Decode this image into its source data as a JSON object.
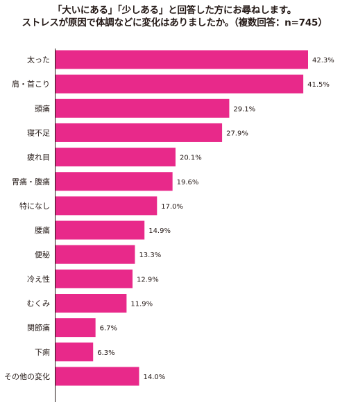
{
  "title_line1": "「大いにある」「少しある」と回答した方にお尋ねします。",
  "title_line2": "ストレスが原因で体調などに変化はありましたか。（複数回答：n=745）",
  "chart_data": {
    "type": "bar",
    "orientation": "horizontal",
    "title": "「大いにある」「少しある」と回答した方にお尋ねします。ストレスが原因で体調などに変化はありましたか。（複数回答：n=745）",
    "categories": [
      "太った",
      "肩・首こり",
      "頭痛",
      "寝不足",
      "疲れ目",
      "胃痛・腹痛",
      "特になし",
      "腰痛",
      "便秘",
      "冷え性",
      "むくみ",
      "関節痛",
      "下痢",
      "その他の変化"
    ],
    "values": [
      42.3,
      41.5,
      29.1,
      27.9,
      20.1,
      19.6,
      17.0,
      14.9,
      13.3,
      12.9,
      11.9,
      6.7,
      6.3,
      14.0
    ],
    "value_labels": [
      "42.3%",
      "41.5%",
      "29.1%",
      "27.9%",
      "20.1%",
      "19.6%",
      "17.0%",
      "14.9%",
      "13.3%",
      "12.9%",
      "11.9%",
      "6.7%",
      "6.3%",
      "14.0%"
    ],
    "xlim": [
      0,
      48
    ],
    "bar_color": "#e8298a",
    "grid": false,
    "legend": "none"
  }
}
